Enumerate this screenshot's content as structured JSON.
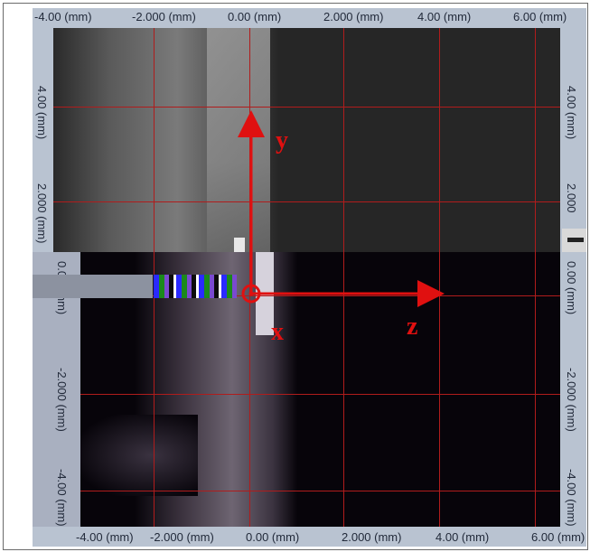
{
  "viewer": {
    "top_ruler": [
      "-4.00 (mm)",
      "-2.000 (mm)",
      "0.00 (mm)",
      "2.000 (mm)",
      "4.00 (mm)",
      "6.00 (mm)"
    ],
    "bottom_ruler": [
      "-4.00 (mm)",
      "-2.000 (mm)",
      "0.00 (mm)",
      "2.000 (mm)",
      "4.00 (mm)",
      "6.00 (mm)"
    ],
    "left_ruler_top": [
      "4.00 (mm)",
      "2.000 (mm)"
    ],
    "right_ruler_top": [
      "4.00 (mm)",
      "2.000"
    ],
    "left_ruler_bottom": [
      "0.00 (mm)",
      "-2.000 (mm)",
      "-4.00 (mm)"
    ],
    "right_ruler_bottom": [
      "0.00 (mm)",
      "-2.000 (mm)",
      "-4.00 (mm)"
    ]
  },
  "axes": {
    "y_label": "y",
    "x_label": "x",
    "z_label": "z",
    "color": "#e01010"
  },
  "colors": {
    "ruler_bg": "#b9c3d1",
    "grid_line": "#b01c1c",
    "top_panel_bg": "#262626",
    "bottom_panel_bg": "#07040a"
  }
}
